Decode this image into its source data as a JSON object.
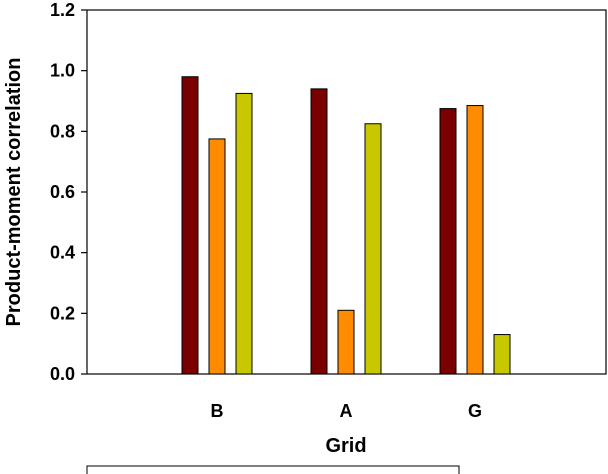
{
  "chart_data": {
    "type": "bar",
    "xlabel": "Grid",
    "ylabel": "Product-moment correlation",
    "categories": [
      "B",
      "A",
      "G"
    ],
    "ylim": [
      0,
      1.2
    ],
    "yticks": [
      "0.0",
      "0.2",
      "0.4",
      "0.6",
      "0.8",
      "1.0",
      "1.2"
    ],
    "grid": false,
    "legend": "none",
    "series": [
      {
        "color": "#7a0000",
        "values": [
          0.98,
          0.94,
          0.875
        ]
      },
      {
        "color": "#ff8c00",
        "values": [
          0.775,
          0.21,
          0.885
        ]
      },
      {
        "color": "#c8c800",
        "values": [
          0.925,
          0.825,
          0.13
        ]
      }
    ]
  }
}
